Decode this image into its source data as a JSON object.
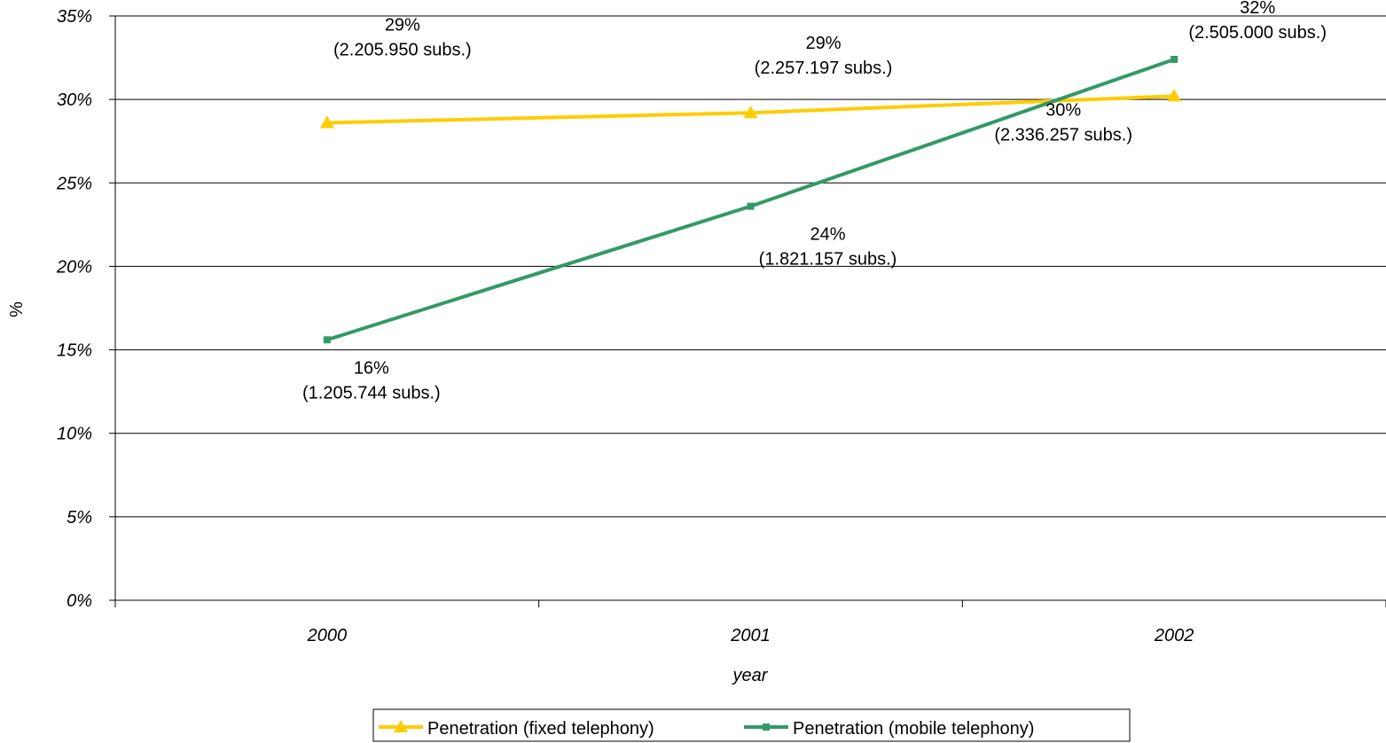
{
  "chart_data": {
    "type": "line",
    "categories": [
      "2000",
      "2001",
      "2002"
    ],
    "xlabel": "year",
    "ylabel": "%",
    "ylim": [
      0,
      35
    ],
    "y_ticks": [
      "0%",
      "5%",
      "10%",
      "15%",
      "20%",
      "25%",
      "30%",
      "35%"
    ],
    "grid": "horizontal",
    "legend_position": "bottom-center",
    "series": [
      {
        "name": "Penetration  (fixed telephony)",
        "color": "#FFCC00",
        "marker": "triangle",
        "values": [
          28.6,
          29.2,
          30.2
        ],
        "labels": [
          [
            "29%",
            "(2.205.950 subs.)"
          ],
          [
            "29%",
            "(2.257.197 subs.)"
          ],
          [
            "30%",
            "(2.336.257 subs.)"
          ]
        ]
      },
      {
        "name": "Penetration  (mobile telephony)",
        "color": "#339966",
        "marker": "square",
        "values": [
          15.6,
          23.6,
          32.4
        ],
        "labels": [
          [
            "16%",
            "(1.205.744 subs.)"
          ],
          [
            "24%",
            "(1.821.157 subs.)"
          ],
          [
            "32%",
            "(2.505.000 subs.)"
          ]
        ]
      }
    ]
  }
}
